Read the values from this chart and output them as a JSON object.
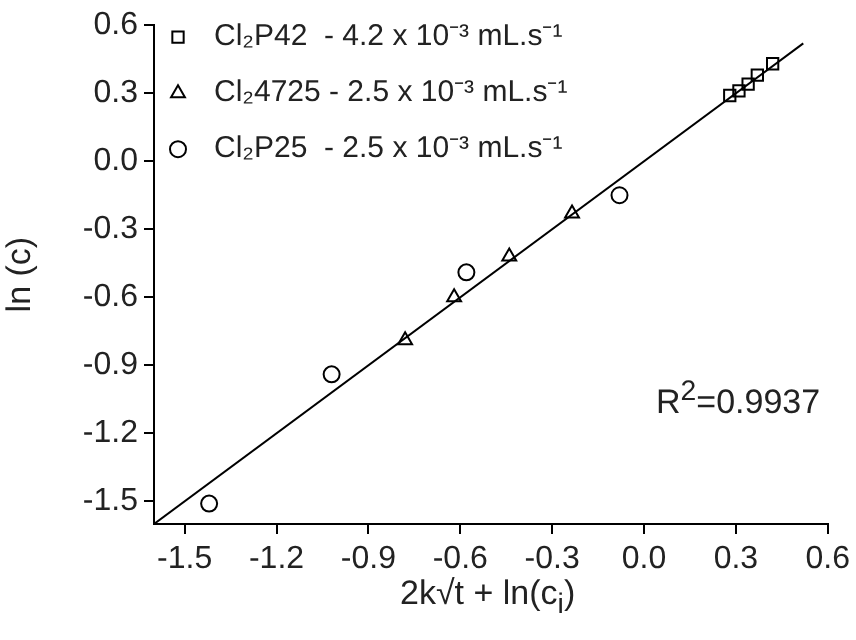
{
  "chart_data": {
    "type": "scatter",
    "ylabel": "ln (c)",
    "xlabel": "2k√t + ln(c$_{i}$)",
    "xlim": [
      -1.6,
      0.6
    ],
    "xticks": [
      -1.5,
      -1.2,
      -0.9,
      -0.6,
      -0.3,
      {
        "value": 0,
        "label": "0.0"
      },
      0.3,
      0.6
    ],
    "ylim": [
      -1.6,
      0.6
    ],
    "yticks": [
      -1.5,
      -1.2,
      -0.9,
      -0.6,
      -0.3,
      {
        "value": 0,
        "label": "0.0"
      },
      0.3,
      0.6
    ],
    "grid": false,
    "legend": "top left",
    "annotations": [
      "R$^{2}$=0.9937"
    ],
    "series": [
      {
        "name": "Cl₂P42  - 4.2 x 10⁻³ mL.s⁻¹",
        "color": "#000000",
        "marker": "square",
        "x": [
          0.28,
          0.31,
          0.34,
          0.37,
          0.42
        ],
        "values": [
          0.29,
          0.31,
          0.34,
          0.38,
          0.43
        ]
      },
      {
        "name": "Cl₂4725 - 2.5 x 10⁻³ mL.s⁻¹",
        "color": "#000000",
        "marker": "triangle",
        "x": [
          -0.78,
          -0.62,
          -0.44,
          -0.235
        ],
        "values": [
          -0.79,
          -0.6,
          -0.42,
          -0.23
        ]
      },
      {
        "name": "Cl₂P25  - 2.5 x 10⁻³ mL.s⁻¹",
        "color": "#000000",
        "marker": "circle",
        "x": [
          -1.42,
          -1.02,
          -0.58,
          -0.08
        ],
        "values": [
          -1.51,
          -0.94,
          -0.49,
          -0.15
        ]
      },
      {
        "type": "line",
        "color": "#000000",
        "marker": "none",
        "line_style": "solid",
        "x": [
          -1.6,
          0.52
        ],
        "values": [
          -1.6,
          0.52
        ]
      }
    ]
  }
}
